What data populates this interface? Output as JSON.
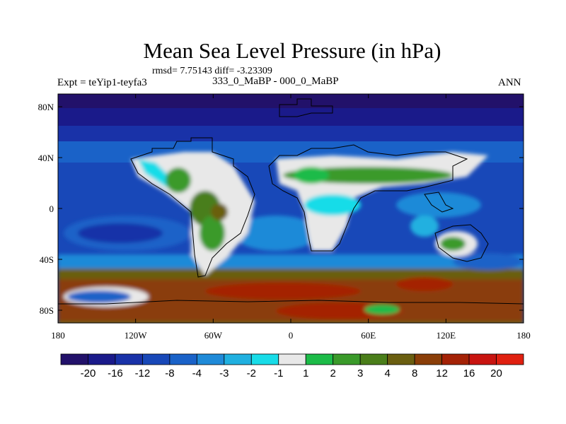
{
  "title": "Mean Sea Level Pressure (in hPa)",
  "stats_text": "rmsd= 7.75143 diff= -3.23309",
  "left_label": "Expt = teYip1-teyfa3",
  "subtitle": "333_0_MaBP - 000_0_MaBP",
  "right_label": "ANN",
  "x_ticks": [
    "180",
    "120W",
    "60W",
    "0",
    "60E",
    "120E",
    "180"
  ],
  "x_tick_values": [
    -180,
    -120,
    -60,
    0,
    60,
    120,
    180
  ],
  "y_ticks": [
    "80N",
    "40N",
    "0",
    "40S",
    "80S"
  ],
  "y_tick_values": [
    80,
    40,
    0,
    -40,
    -80
  ],
  "colorbar": {
    "labels": [
      "-20",
      "-16",
      "-12",
      "-8",
      "-4",
      "-3",
      "-2",
      "-1",
      "1",
      "2",
      "3",
      "4",
      "8",
      "12",
      "16",
      "20"
    ],
    "colors": [
      "#22116a",
      "#1a1a8a",
      "#1932a8",
      "#1848b8",
      "#1a62c8",
      "#1f8ad8",
      "#20b0e0",
      "#18dce8",
      "#e8e8e8",
      "#1cbb48",
      "#3a9a2a",
      "#4a7e1a",
      "#6a5e10",
      "#8a3e08",
      "#a42206",
      "#c81410",
      "#e02010"
    ]
  },
  "chart_data": {
    "type": "heatmap",
    "title": "Mean Sea Level Pressure (in hPa)",
    "subtitle": "333_0_MaBP - 000_0_MaBP",
    "rmsd": 7.75143,
    "diff": -3.23309,
    "season": "ANN",
    "units": "hPa",
    "xlim": [
      -180,
      180
    ],
    "ylim": [
      -90,
      90
    ],
    "contour_levels": [
      -20,
      -16,
      -12,
      -8,
      -4,
      -3,
      -2,
      -1,
      1,
      2,
      3,
      4,
      8,
      12,
      16,
      20
    ]
  }
}
